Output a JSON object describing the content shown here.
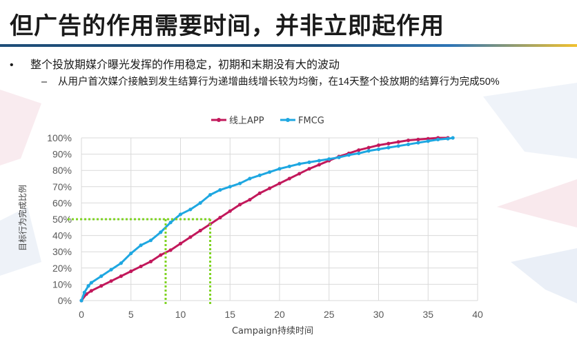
{
  "slide": {
    "title": "但广告的作用需要时间，并非立即起作用",
    "bullet_1": "整个投放期媒介曝光发挥的作用稳定，初期和末期没有大的波动",
    "bullet_1_marker": "•",
    "bullet_2": "从用户首次媒介接触到发生结算行为递增曲线增长较为均衡，在14天整个投放期的结算行为完成50%",
    "bullet_2_marker": "–"
  },
  "colors": {
    "app": "#c2185b",
    "fmcg": "#1ea7e1",
    "guide": "#7ed321",
    "grid": "#d9d9d9",
    "rule_dark": "#1f4e79",
    "rule_gold": "#f2c12e"
  },
  "chart_data": {
    "type": "line",
    "title": "",
    "xlabel": "Campaign持续时间",
    "ylabel": "目标行为完成比例",
    "xlim": [
      0,
      40
    ],
    "ylim": [
      0,
      1
    ],
    "x_ticks": [
      0,
      5,
      10,
      15,
      20,
      25,
      30,
      35,
      40
    ],
    "y_ticks": [
      0,
      0.1,
      0.2,
      0.3,
      0.4,
      0.5,
      0.6,
      0.7,
      0.8,
      0.9,
      1.0
    ],
    "x_tick_labels": [
      "0",
      "5",
      "10",
      "15",
      "20",
      "25",
      "30",
      "35",
      "40"
    ],
    "y_tick_labels": [
      "0%",
      "10%",
      "20%",
      "30%",
      "40%",
      "50%",
      "60%",
      "70%",
      "80%",
      "90%",
      "100%"
    ],
    "legend_position": "top-center",
    "grid": true,
    "series": [
      {
        "name": "线上APP",
        "x": [
          0,
          0.5,
          1,
          2,
          3,
          4,
          5,
          6,
          7,
          8,
          9,
          10,
          11,
          12,
          13,
          14,
          15,
          16,
          17,
          18,
          19,
          20,
          21,
          22,
          23,
          24,
          25,
          26,
          27,
          28,
          29,
          30,
          31,
          32,
          33,
          34,
          35,
          36,
          37
        ],
        "y": [
          0.0,
          0.04,
          0.06,
          0.09,
          0.12,
          0.15,
          0.18,
          0.21,
          0.24,
          0.28,
          0.31,
          0.35,
          0.39,
          0.43,
          0.47,
          0.51,
          0.55,
          0.59,
          0.62,
          0.66,
          0.69,
          0.72,
          0.75,
          0.78,
          0.81,
          0.835,
          0.86,
          0.885,
          0.905,
          0.925,
          0.94,
          0.955,
          0.965,
          0.975,
          0.985,
          0.99,
          0.995,
          1.0,
          1.0
        ]
      },
      {
        "name": "FMCG",
        "x": [
          0,
          0.3,
          0.7,
          1,
          2,
          3,
          4,
          5,
          6,
          7,
          8,
          9,
          10,
          11,
          12,
          13,
          14,
          15,
          16,
          17,
          18,
          19,
          20,
          21,
          22,
          23,
          24,
          25,
          26,
          27,
          28,
          29,
          30,
          31,
          32,
          33,
          34,
          35,
          36,
          37,
          37.5
        ],
        "y": [
          0.0,
          0.05,
          0.09,
          0.11,
          0.15,
          0.19,
          0.23,
          0.29,
          0.34,
          0.37,
          0.42,
          0.48,
          0.53,
          0.56,
          0.6,
          0.65,
          0.68,
          0.7,
          0.72,
          0.75,
          0.77,
          0.79,
          0.81,
          0.825,
          0.84,
          0.85,
          0.86,
          0.87,
          0.88,
          0.895,
          0.905,
          0.92,
          0.93,
          0.94,
          0.95,
          0.96,
          0.97,
          0.98,
          0.99,
          0.995,
          1.0
        ]
      }
    ],
    "guides": [
      {
        "y": 0.5,
        "x_values": [
          8.5,
          13.0
        ]
      }
    ]
  }
}
